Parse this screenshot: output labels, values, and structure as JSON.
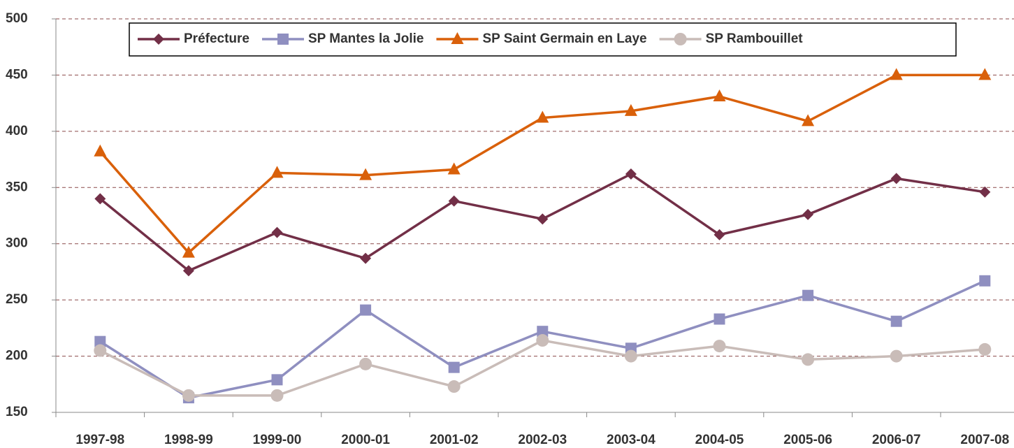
{
  "chart_data": {
    "type": "line",
    "categories": [
      "1997-98",
      "1998-99",
      "1999-00",
      "2000-01",
      "2001-02",
      "2002-03",
      "2003-04",
      "2004-05",
      "2005-06",
      "2006-07",
      "2007-08"
    ],
    "series": [
      {
        "name": "Préfecture",
        "color": "#722f47",
        "marker": "diamond",
        "values": [
          340,
          276,
          310,
          287,
          338,
          322,
          362,
          308,
          326,
          358,
          346
        ]
      },
      {
        "name": "SP Mantes la Jolie",
        "color": "#8f8fc0",
        "marker": "square",
        "values": [
          213,
          163,
          179,
          241,
          190,
          222,
          207,
          233,
          254,
          231,
          267
        ]
      },
      {
        "name": "SP Saint Germain en Laye",
        "color": "#d9600a",
        "marker": "triangle",
        "values": [
          382,
          292,
          363,
          361,
          366,
          412,
          418,
          431,
          409,
          450,
          450
        ]
      },
      {
        "name": "SP Rambouillet",
        "color": "#c9bcb8",
        "marker": "circle",
        "values": [
          205,
          165,
          165,
          193,
          173,
          214,
          200,
          209,
          197,
          200,
          206
        ]
      }
    ],
    "ylim": [
      150,
      500
    ],
    "yticks": [
      150,
      200,
      250,
      300,
      350,
      400,
      450,
      500
    ],
    "grid": true,
    "legend": "top"
  }
}
